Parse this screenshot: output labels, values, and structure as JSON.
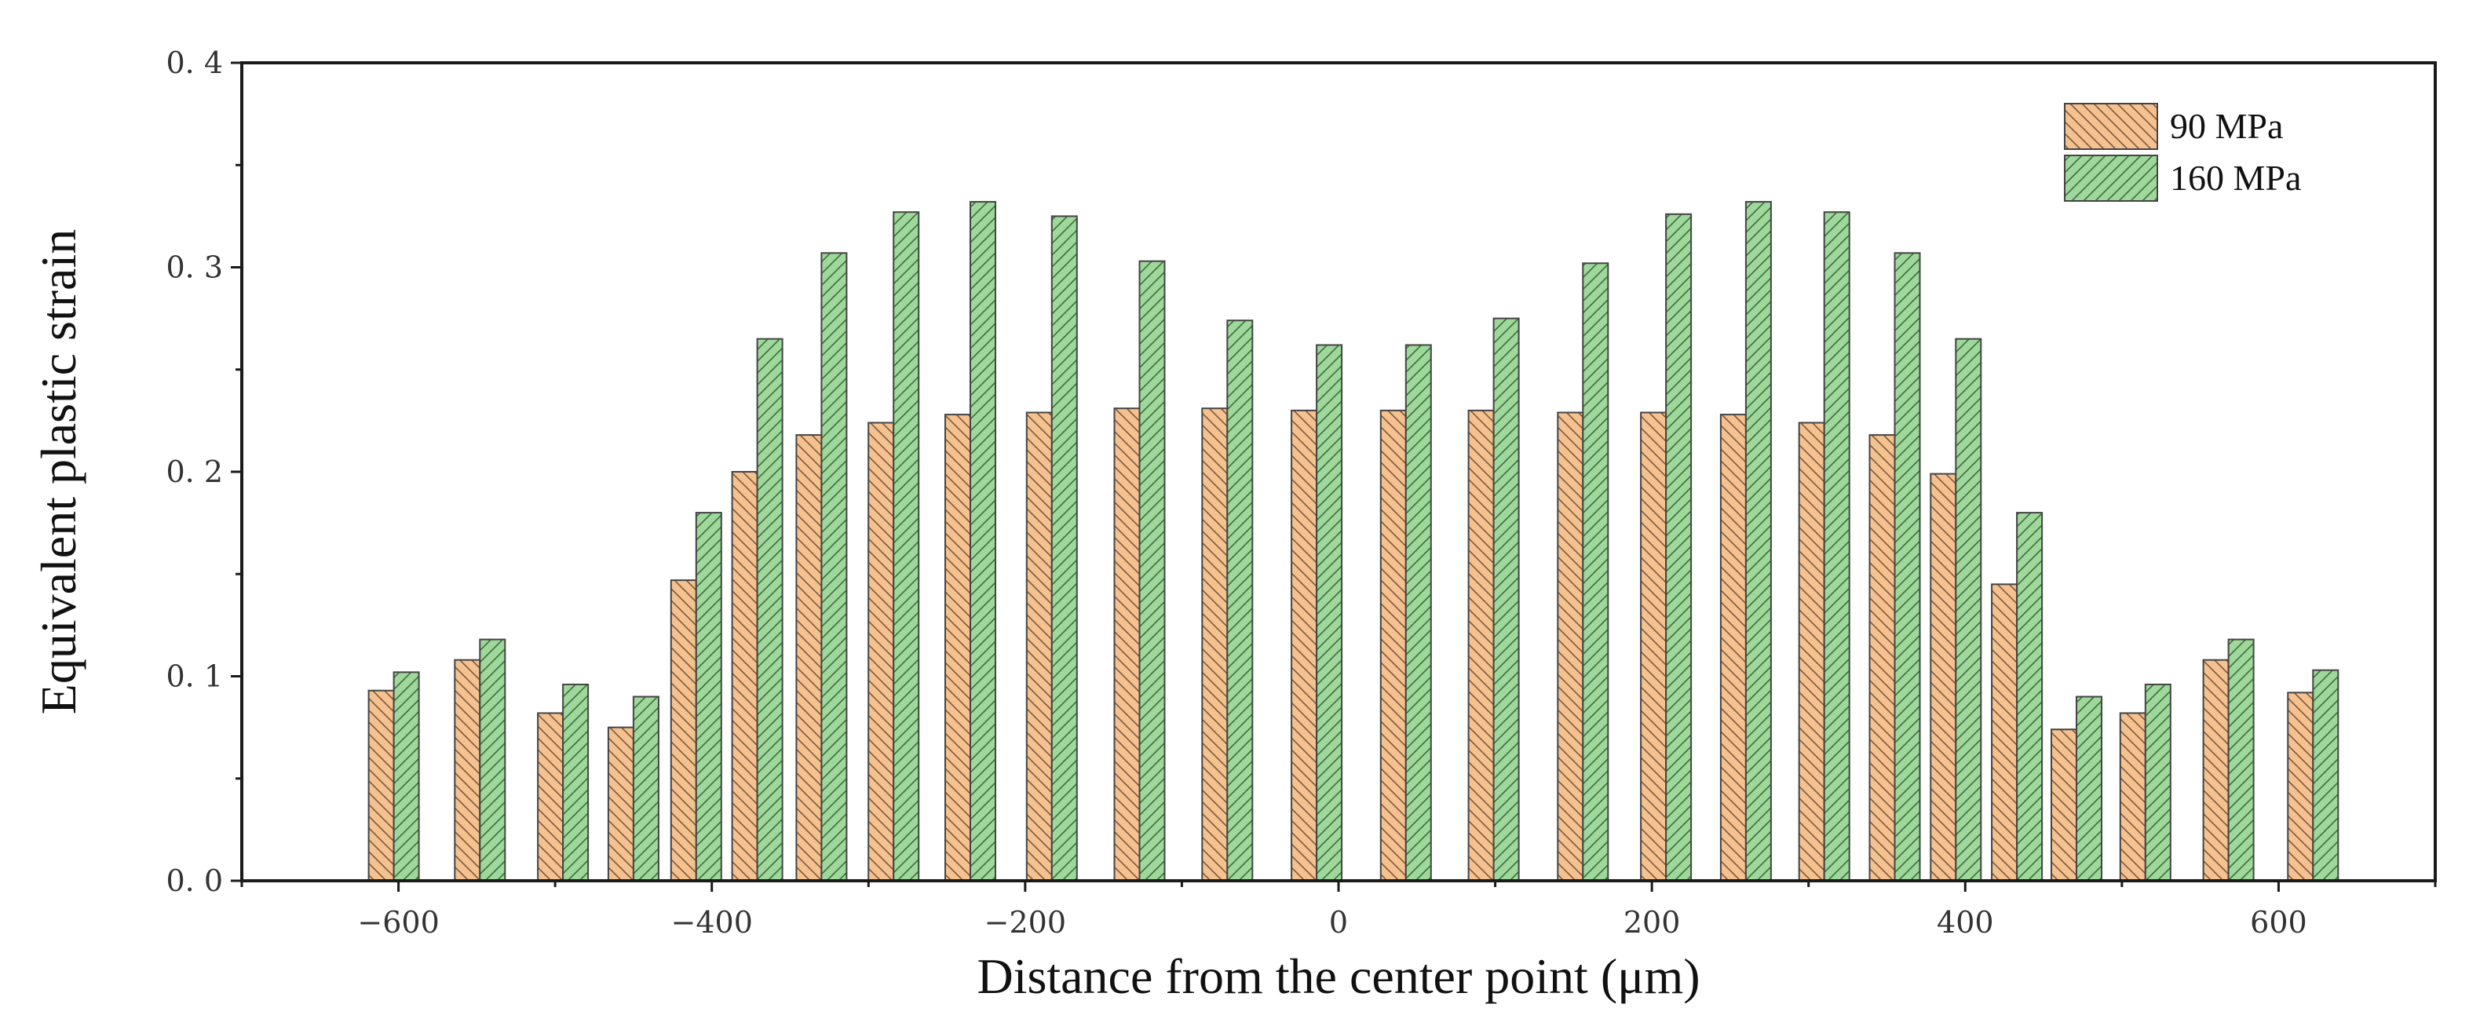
{
  "chart_data": {
    "type": "bar",
    "xlabel": "Distance from the center point (μm)",
    "ylabel": "Equivalent plastic strain",
    "xlim": [
      -700,
      700
    ],
    "ylim": [
      0,
      0.4
    ],
    "x_ticks": [
      -600,
      -400,
      -200,
      0,
      200,
      400,
      600
    ],
    "x_tick_labels": [
      "−600",
      "−400",
      "−200",
      "0",
      "200",
      "400",
      "600"
    ],
    "y_ticks": [
      0,
      0.1,
      0.2,
      0.3,
      0.4
    ],
    "y_tick_labels": [
      "0. 0",
      "0. 1",
      "0. 2",
      "0. 3",
      "0. 4"
    ],
    "legend_position": "top-right",
    "grid": false,
    "x": [
      -603,
      -548,
      -495,
      -450,
      -410,
      -371,
      -330,
      -284,
      -235,
      -183,
      -127,
      -71,
      -14,
      43,
      99,
      156,
      209,
      260,
      310,
      355,
      394,
      433,
      471,
      515,
      568,
      622
    ],
    "series": [
      {
        "name": "90 MPa",
        "color": "#F5C18F",
        "hatch": "backslash",
        "values": [
          0.093,
          0.108,
          0.082,
          0.075,
          0.147,
          0.2,
          0.218,
          0.224,
          0.228,
          0.229,
          0.231,
          0.231,
          0.23,
          0.23,
          0.23,
          0.229,
          0.229,
          0.228,
          0.224,
          0.218,
          0.199,
          0.145,
          0.074,
          0.082,
          0.108,
          0.092
        ]
      },
      {
        "name": "160 MPa",
        "color": "#9ED89A",
        "hatch": "slash",
        "values": [
          0.102,
          0.118,
          0.096,
          0.09,
          0.18,
          0.265,
          0.307,
          0.327,
          0.332,
          0.325,
          0.303,
          0.274,
          0.262,
          0.262,
          0.275,
          0.302,
          0.326,
          0.332,
          0.327,
          0.307,
          0.265,
          0.18,
          0.09,
          0.096,
          0.118,
          0.103
        ]
      }
    ]
  }
}
